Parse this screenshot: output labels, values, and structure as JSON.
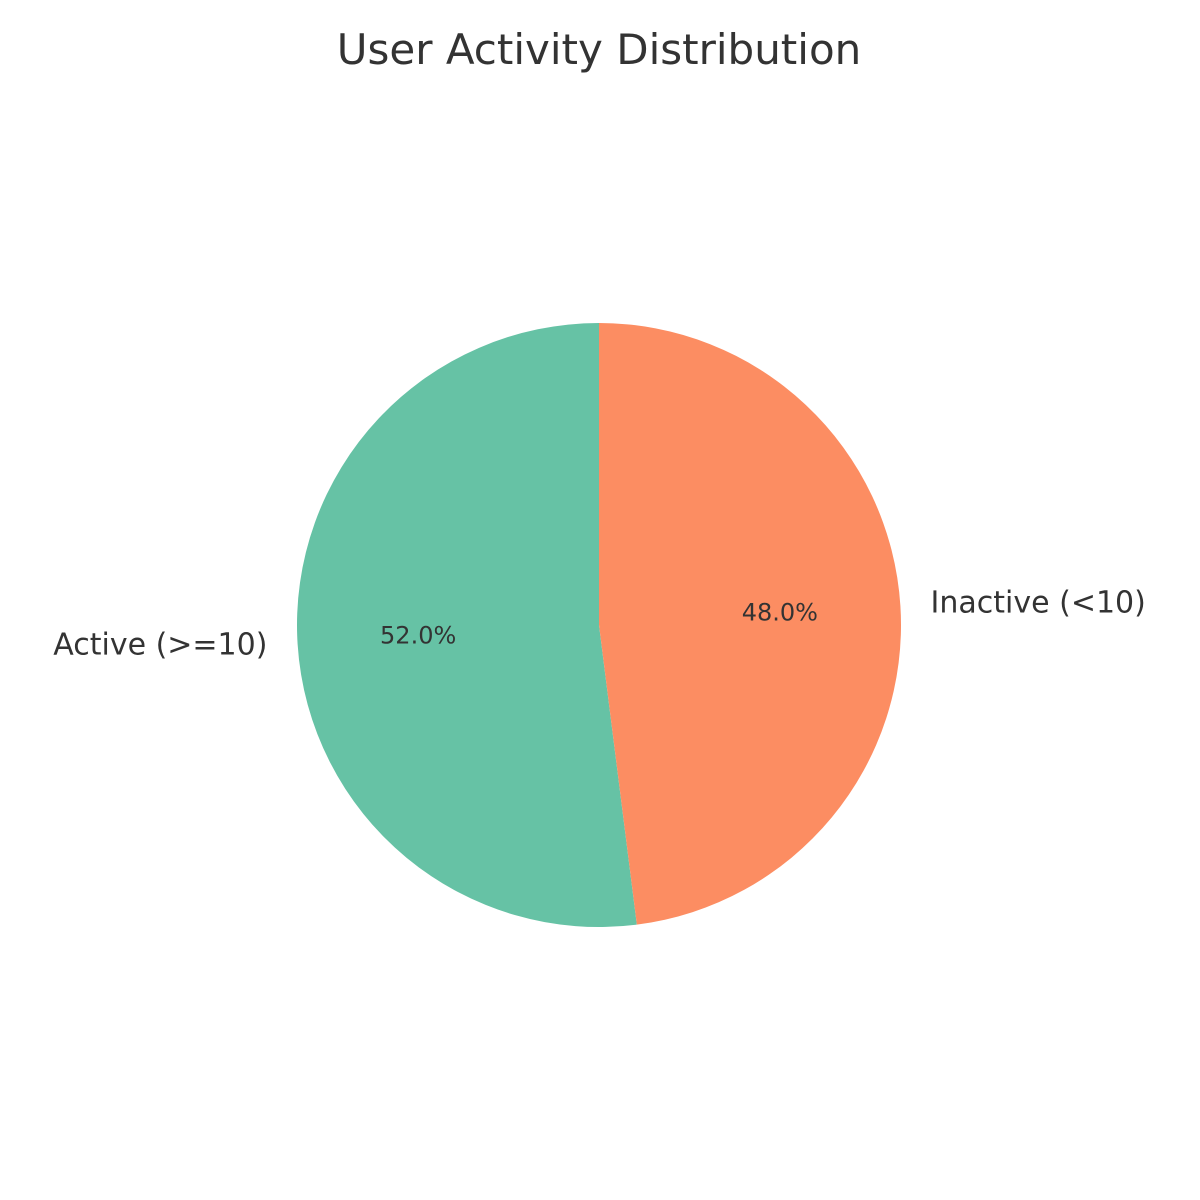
{
  "chart_data": {
    "type": "pie",
    "title": "User Activity Distribution",
    "slices": [
      {
        "label": "Active (>=10)",
        "value": 52.0,
        "pct_label": "52.0%",
        "color": "#66c2a5"
      },
      {
        "label": "Inactive (<10)",
        "value": 48.0,
        "pct_label": "48.0%",
        "color": "#fc8d62"
      }
    ],
    "start_angle_deg": 90,
    "direction": "counterclockwise",
    "legend": "none"
  }
}
